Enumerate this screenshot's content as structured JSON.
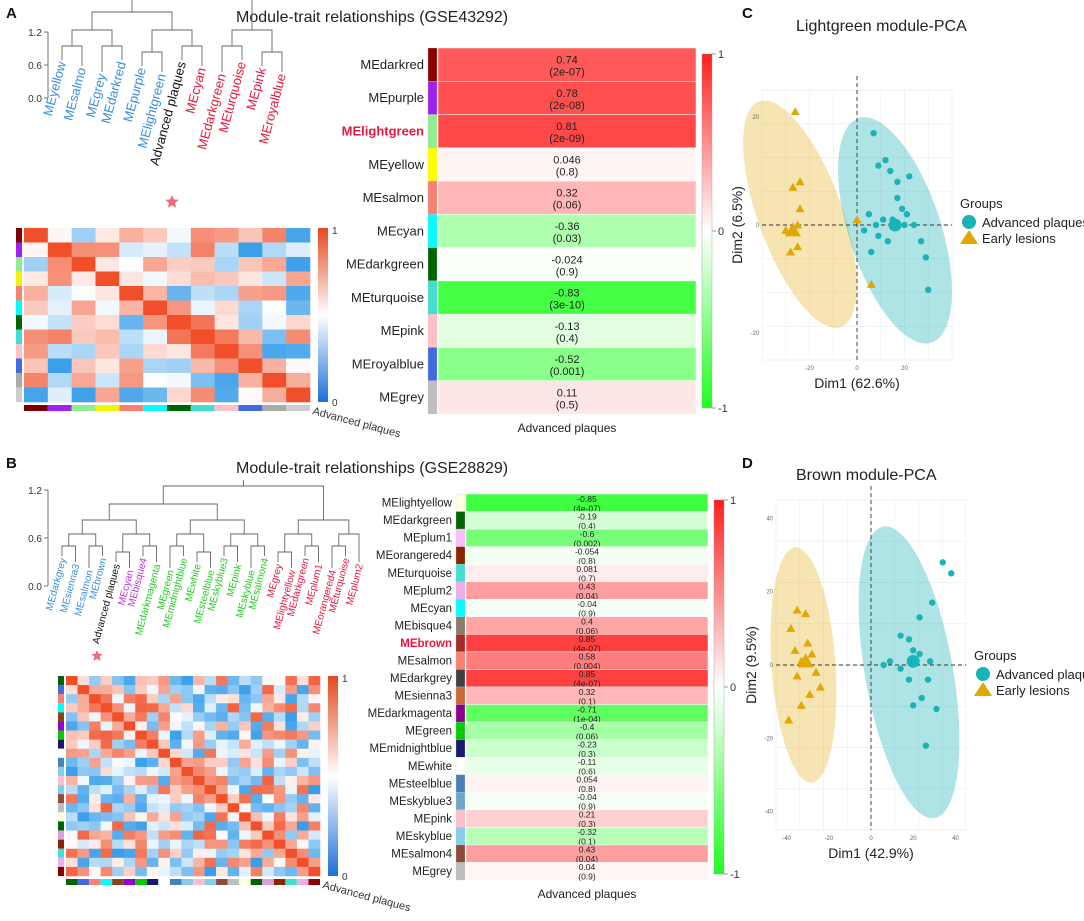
{
  "panels": {
    "A": {
      "letter": "A",
      "title": "Module-trait relationships (GSE43292)",
      "trait": "Advanced plaques",
      "dendro_ticks": [
        "1.2",
        "0.6",
        "0.0"
      ],
      "dendro_leaves": [
        {
          "name": "MEyellow",
          "color": "#3b8ee0"
        },
        {
          "name": "MEsalmo",
          "color": "#3b8ee0"
        },
        {
          "name": "MEgrey",
          "color": "#3b8ee0"
        },
        {
          "name": "MEdarkred",
          "color": "#3b8ee0"
        },
        {
          "name": "MEpurple",
          "color": "#3b8ee0"
        },
        {
          "name": "MElightgreen",
          "color": "#3b8ee0"
        },
        {
          "name": "Advanced plaques",
          "color": "#111111"
        },
        {
          "name": "MEcyan",
          "color": "#e8183c"
        },
        {
          "name": "MEdarkgreen",
          "color": "#e8183c"
        },
        {
          "name": "MEturquoise",
          "color": "#e8183c"
        },
        {
          "name": "MEpink",
          "color": "#e8183c"
        },
        {
          "name": "MEroyalblue",
          "color": "#e8183c"
        }
      ],
      "adj_colors": [
        "#800000",
        "#a020f0",
        "#90ee90",
        "#f4f400",
        "#fa8072",
        "#00ffff",
        "#006400",
        "#40e0d0",
        "#ffc0cb",
        "#4169e1",
        "#aaaaaa",
        "#cccccc"
      ],
      "adj_scale": [
        "1",
        "0"
      ],
      "scale_ticks": [
        "1",
        "0",
        "-1"
      ],
      "highlight": "MElightgreen",
      "rows": [
        {
          "module": "MEdarkred",
          "corr": "0.74",
          "p": "(2e-07)",
          "color": "#8b0000"
        },
        {
          "module": "MEpurple",
          "corr": "0.78",
          "p": "(2e-08)",
          "color": "#a020f0"
        },
        {
          "module": "MElightgreen",
          "corr": "0.81",
          "p": "(2e-09)",
          "color": "#90ee90"
        },
        {
          "module": "MEyellow",
          "corr": "0.046",
          "p": "(0.8)",
          "color": "#ffff00"
        },
        {
          "module": "MEsalmon",
          "corr": "0.32",
          "p": "(0.06)",
          "color": "#fa8072"
        },
        {
          "module": "MEcyan",
          "corr": "-0.36",
          "p": "(0.03)",
          "color": "#00ffff"
        },
        {
          "module": "MEdarkgreen",
          "corr": "-0.024",
          "p": "(0.9)",
          "color": "#006400"
        },
        {
          "module": "MEturquoise",
          "corr": "-0.83",
          "p": "(3e-10)",
          "color": "#40e0d0"
        },
        {
          "module": "MEpink",
          "corr": "-0.13",
          "p": "(0.4)",
          "color": "#ffc0cb"
        },
        {
          "module": "MEroyalblue",
          "corr": "-0.52",
          "p": "(0.001)",
          "color": "#4169e1"
        },
        {
          "module": "MEgrey",
          "corr": "0.11",
          "p": "(0.5)",
          "color": "#bebebe"
        }
      ]
    },
    "B": {
      "letter": "B",
      "title": "Module-trait relationships (GSE28829)",
      "trait": "Advanced plaques",
      "dendro_ticks": [
        "1.2",
        "0.6",
        "0.0"
      ],
      "dendro_leaves": [
        {
          "name": "MEdarkgrey",
          "color": "#3b8ee0"
        },
        {
          "name": "MEsienna3",
          "color": "#3b8ee0"
        },
        {
          "name": "MEsalmon",
          "color": "#3b8ee0"
        },
        {
          "name": "MEbrown",
          "color": "#3b8ee0"
        },
        {
          "name": "Advanced plaques",
          "color": "#111111"
        },
        {
          "name": "MEcyan",
          "color": "#c030e0"
        },
        {
          "name": "MEbisque4",
          "color": "#c030e0"
        },
        {
          "name": "MEdarkmagenta",
          "color": "#22cc22"
        },
        {
          "name": "MEgreen",
          "color": "#22cc22"
        },
        {
          "name": "MEmidnightblue",
          "color": "#22cc22"
        },
        {
          "name": "MEwhite",
          "color": "#22cc22"
        },
        {
          "name": "MEsteelblue",
          "color": "#22cc22"
        },
        {
          "name": "MEskyblue3",
          "color": "#22cc22"
        },
        {
          "name": "MEpink",
          "color": "#22cc22"
        },
        {
          "name": "MEskyblue",
          "color": "#22cc22"
        },
        {
          "name": "MEsalmon4",
          "color": "#22cc22"
        },
        {
          "name": "MEgrey",
          "color": "#e8183c"
        },
        {
          "name": "MElightyellow",
          "color": "#e8183c"
        },
        {
          "name": "MEdarkgreen",
          "color": "#e8183c"
        },
        {
          "name": "MEplum1",
          "color": "#e8183c"
        },
        {
          "name": "MEorangered4",
          "color": "#e8183c"
        },
        {
          "name": "MEturquoise",
          "color": "#e8183c"
        },
        {
          "name": "MEplum2",
          "color": "#e8183c"
        }
      ],
      "adj_colors": [
        "#006400",
        "#4169e1",
        "#fa8072",
        "#00ffff",
        "#8b4513",
        "#9400d3",
        "#00cc00",
        "#191970",
        "#ffffff",
        "#4682b4",
        "#87ceeb",
        "#ffc0cb",
        "#87ceeb",
        "#8b4c39",
        "#bebebe",
        "#ffffe0",
        "#006400",
        "#dda0dd",
        "#8b2500",
        "#40e0d0",
        "#eeaeee",
        "#8b0000"
      ],
      "adj_scale": [
        "1",
        "0"
      ],
      "scale_ticks": [
        "1",
        "0",
        "-1"
      ],
      "highlight": "MEbrown",
      "rows": [
        {
          "module": "MElightyellow",
          "corr": "-0.85",
          "p": "(4e-07)",
          "color": "#ffffe0"
        },
        {
          "module": "MEdarkgreen",
          "corr": "-0.19",
          "p": "(0.4)",
          "color": "#006400"
        },
        {
          "module": "MEplum1",
          "corr": "-0.6",
          "p": "(0.002)",
          "color": "#ffbbff"
        },
        {
          "module": "MEorangered4",
          "corr": "-0.054",
          "p": "(0.8)",
          "color": "#8b2500"
        },
        {
          "module": "MEturquoise",
          "corr": "0.081",
          "p": "(0.7)",
          "color": "#40e0d0"
        },
        {
          "module": "MEplum2",
          "corr": "0.43",
          "p": "(0.04)",
          "color": "#eeaeee"
        },
        {
          "module": "MEcyan",
          "corr": "-0.04",
          "p": "(0.9)",
          "color": "#00ffff"
        },
        {
          "module": "MEbisque4",
          "corr": "0.4",
          "p": "(0.06)",
          "color": "#8b7d6b"
        },
        {
          "module": "MEbrown",
          "corr": "0.85",
          "p": "(4e-07)",
          "color": "#a52a2a"
        },
        {
          "module": "MEsalmon",
          "corr": "0.58",
          "p": "(0.004)",
          "color": "#fa8072"
        },
        {
          "module": "MEdarkgrey",
          "corr": "0.85",
          "p": "(4e-07)",
          "color": "#404040"
        },
        {
          "module": "MEsienna3",
          "corr": "0.32",
          "p": "(0.1)",
          "color": "#cd6839"
        },
        {
          "module": "MEdarkmagenta",
          "corr": "-0.71",
          "p": "(1e-04)",
          "color": "#8b008b"
        },
        {
          "module": "MEgreen",
          "corr": "-0.4",
          "p": "(0.06)",
          "color": "#00cc00"
        },
        {
          "module": "MEmidnightblue",
          "corr": "-0.23",
          "p": "(0.3)",
          "color": "#191970"
        },
        {
          "module": "MEwhite",
          "corr": "-0.11",
          "p": "(0.6)",
          "color": "#ffffff"
        },
        {
          "module": "MEsteelblue",
          "corr": "0.054",
          "p": "(0.8)",
          "color": "#4682b4"
        },
        {
          "module": "MEskyblue3",
          "corr": "-0.04",
          "p": "(0.9)",
          "color": "#6ca6cd"
        },
        {
          "module": "MEpink",
          "corr": "0.21",
          "p": "(0.3)",
          "color": "#ffc0cb"
        },
        {
          "module": "MEskyblue",
          "corr": "-0.32",
          "p": "(0.1)",
          "color": "#87ceeb"
        },
        {
          "module": "MEsalmon4",
          "corr": "0.43",
          "p": "(0.04)",
          "color": "#8b4c39"
        },
        {
          "module": "MEgrey",
          "corr": "0.04",
          "p": "(0.9)",
          "color": "#bebebe"
        }
      ]
    },
    "C": {
      "letter": "C",
      "title": "Lightgreen module-PCA",
      "xlabel": "Dim1 (62.6%)",
      "ylabel": "Dim2 (6.5%)",
      "xticks": [
        "-20",
        "0",
        "20"
      ],
      "yticks": [
        "20",
        "0",
        "-20"
      ],
      "legend_title": "Groups",
      "legend_items": [
        "Advanced plaques",
        "Early lesions"
      ],
      "group_colors": {
        "advanced": "#1ab3b8",
        "early": "#e0a800"
      }
    },
    "D": {
      "letter": "D",
      "title": "Brown module-PCA",
      "xlabel": "Dim1 (42.9%)",
      "ylabel": "Dim2 (9.5%)",
      "xticks": [
        "-40",
        "-20",
        "0",
        "20",
        "40"
      ],
      "yticks": [
        "40",
        "20",
        "0",
        "-20",
        "-40"
      ],
      "legend_title": "Groups",
      "legend_items": [
        "Advanced plaques",
        "Early lesions"
      ],
      "group_colors": {
        "advanced": "#1ab3b8",
        "early": "#e0a800"
      }
    }
  },
  "chart_data": [
    {
      "type": "heatmap",
      "title": "Module-trait relationships (GSE43292)",
      "xlabel": "Advanced plaques",
      "categories": [
        "MEdarkred",
        "MEpurple",
        "MElightgreen",
        "MEyellow",
        "MEsalmon",
        "MEcyan",
        "MEdarkgreen",
        "MEturquoise",
        "MEpink",
        "MEroyalblue",
        "MEgrey"
      ],
      "values": [
        0.74,
        0.78,
        0.81,
        0.046,
        0.32,
        -0.36,
        -0.024,
        -0.83,
        -0.13,
        -0.52,
        0.11
      ],
      "colorbar_range": [
        -1,
        1
      ]
    },
    {
      "type": "heatmap",
      "title": "Module-trait relationships (GSE28829)",
      "xlabel": "Advanced plaques",
      "categories": [
        "MElightyellow",
        "MEdarkgreen",
        "MEplum1",
        "MEorangered4",
        "MEturquoise",
        "MEplum2",
        "MEcyan",
        "MEbisque4",
        "MEbrown",
        "MEsalmon",
        "MEdarkgrey",
        "MEsienna3",
        "MEdarkmagenta",
        "MEgreen",
        "MEmidnightblue",
        "MEwhite",
        "MEsteelblue",
        "MEskyblue3",
        "MEpink",
        "MEskyblue",
        "MEsalmon4",
        "MEgrey"
      ],
      "values": [
        -0.85,
        -0.19,
        -0.6,
        -0.054,
        0.081,
        0.43,
        -0.04,
        0.4,
        0.85,
        0.58,
        0.85,
        0.32,
        -0.71,
        -0.4,
        -0.23,
        -0.11,
        0.054,
        -0.04,
        0.21,
        -0.32,
        0.43,
        0.04
      ],
      "colorbar_range": [
        -1,
        1
      ]
    },
    {
      "type": "scatter",
      "title": "Lightgreen module-PCA",
      "xlabel": "Dim1 (62.6%)",
      "ylabel": "Dim2 (6.5%)",
      "xlim": [
        -40,
        40
      ],
      "ylim": [
        -25,
        25
      ],
      "series": [
        {
          "name": "Advanced plaques",
          "points": [
            [
              7,
              17
            ],
            [
              12,
              12
            ],
            [
              9,
              11
            ],
            [
              14,
              10
            ],
            [
              17,
              8
            ],
            [
              22,
              9
            ],
            [
              17,
              5
            ],
            [
              19,
              3
            ],
            [
              21,
              2
            ],
            [
              5,
              2
            ],
            [
              8,
              0
            ],
            [
              11,
              1
            ],
            [
              15,
              1
            ],
            [
              20,
              0
            ],
            [
              24,
              0
            ],
            [
              3,
              -1
            ],
            [
              9,
              -2
            ],
            [
              13,
              -3
            ],
            [
              27,
              -3
            ],
            [
              29,
              -6
            ],
            [
              6,
              -5
            ],
            [
              30,
              -12
            ]
          ],
          "centroid": [
            16,
            0
          ]
        },
        {
          "name": "Early lesions",
          "points": [
            [
              -26,
              21
            ],
            [
              -24,
              8
            ],
            [
              -27,
              7
            ],
            [
              -24,
              3
            ],
            [
              -25,
              0
            ],
            [
              -30,
              -1
            ],
            [
              -27,
              -1
            ],
            [
              -25,
              -4
            ],
            [
              -28,
              -5
            ],
            [
              0,
              1
            ],
            [
              6,
              -11
            ]
          ],
          "centroid": [
            -27,
            -1
          ]
        }
      ]
    },
    {
      "type": "scatter",
      "title": "Brown module-PCA",
      "xlabel": "Dim1 (42.9%)",
      "ylabel": "Dim2 (9.5%)",
      "xlim": [
        -45,
        45
      ],
      "ylim": [
        -45,
        45
      ],
      "series": [
        {
          "name": "Advanced plaques",
          "points": [
            [
              34,
              28
            ],
            [
              38,
              25
            ],
            [
              29,
              17
            ],
            [
              23,
              13
            ],
            [
              14,
              8
            ],
            [
              18,
              7
            ],
            [
              20,
              4
            ],
            [
              23,
              3
            ],
            [
              28,
              1
            ],
            [
              6,
              0
            ],
            [
              9,
              1
            ],
            [
              14,
              -1
            ],
            [
              18,
              -4
            ],
            [
              27,
              -4
            ],
            [
              24,
              -9
            ],
            [
              20,
              -11
            ],
            [
              31,
              -12
            ],
            [
              26,
              -22
            ]
          ],
          "centroid": [
            20,
            1
          ]
        },
        {
          "name": "Early lesions",
          "points": [
            [
              -35,
              15
            ],
            [
              -31,
              14
            ],
            [
              -38,
              10
            ],
            [
              -30,
              6
            ],
            [
              -36,
              4
            ],
            [
              -28,
              3
            ],
            [
              -33,
              1
            ],
            [
              -26,
              -2
            ],
            [
              -35,
              -3
            ],
            [
              -24,
              -6
            ],
            [
              -29,
              -8
            ],
            [
              -33,
              -11
            ],
            [
              -39,
              -15
            ]
          ],
          "centroid": [
            -31,
            1
          ]
        }
      ]
    }
  ]
}
